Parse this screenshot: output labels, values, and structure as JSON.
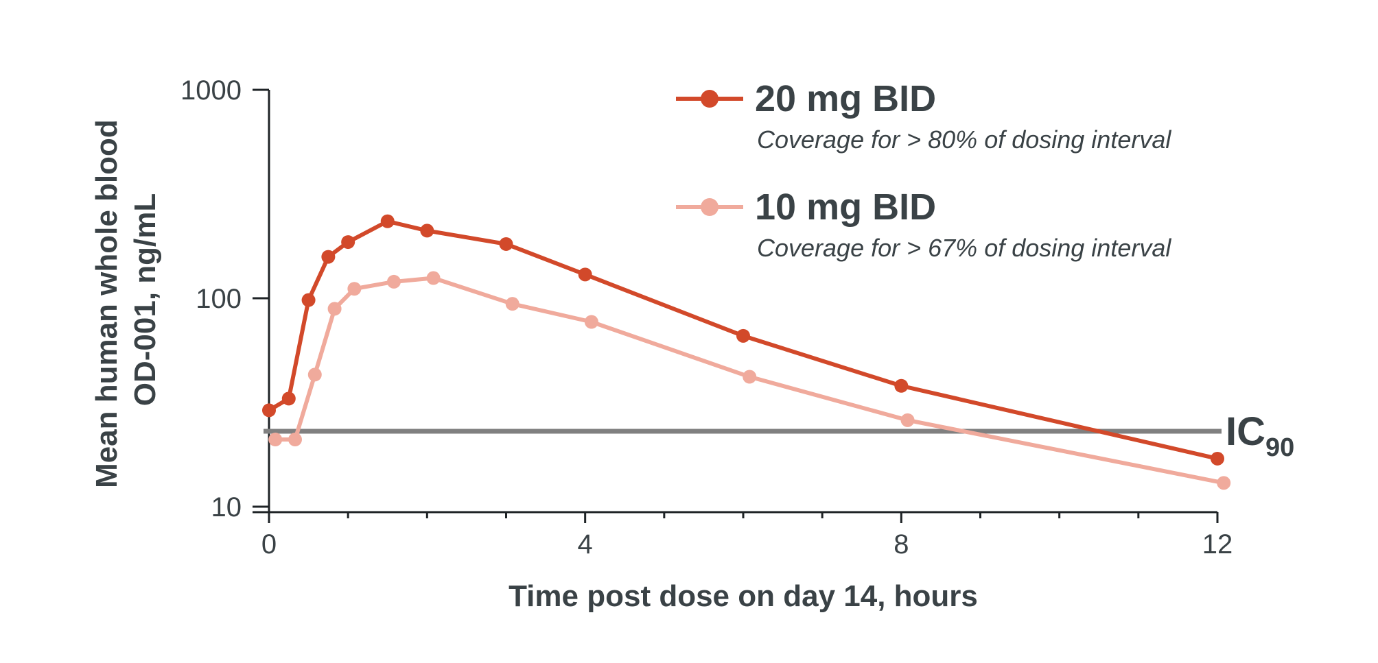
{
  "chart_data": {
    "type": "line",
    "title": "",
    "xlabel": "Time post dose on day 14, hours",
    "ylabel_line1": "Mean human whole blood",
    "ylabel_line2": "OD-001, ng/mL",
    "xlim": [
      0,
      12
    ],
    "ylim": [
      10,
      1000
    ],
    "yscale": "log",
    "xticks": [
      0,
      4,
      8,
      12
    ],
    "xtick_labels": [
      "0",
      "4",
      "8",
      "12"
    ],
    "xminor_ticks": [
      1,
      2,
      3,
      5,
      6,
      7,
      9,
      10,
      11
    ],
    "yticks": [
      10,
      100,
      1000
    ],
    "ytick_labels": [
      "10",
      "100",
      "1000"
    ],
    "series": [
      {
        "name": "20 mg BID",
        "note": "Coverage for > 80% of dosing interval",
        "color": "#d2492a",
        "x": [
          0,
          0.25,
          0.5,
          0.75,
          1,
          1.5,
          2,
          3,
          4,
          6,
          8,
          12
        ],
        "y": [
          29,
          33,
          98,
          158,
          186,
          234,
          211,
          182,
          130,
          66,
          38,
          17
        ]
      },
      {
        "name": "10 mg BID",
        "note": "Coverage for > 67% of dosing interval",
        "color": "#f0aa9c",
        "x": [
          0.08,
          0.33,
          0.58,
          0.83,
          1.08,
          1.58,
          2.08,
          3.08,
          4.08,
          6.08,
          8.08,
          12.08
        ],
        "y": [
          21,
          21,
          43,
          89,
          111,
          120,
          125,
          94,
          77,
          42,
          26,
          13
        ]
      }
    ],
    "reference_line": {
      "label": "IC",
      "subscript": "90",
      "y": 23,
      "color": "#808080"
    },
    "legend_position": "top-right"
  }
}
